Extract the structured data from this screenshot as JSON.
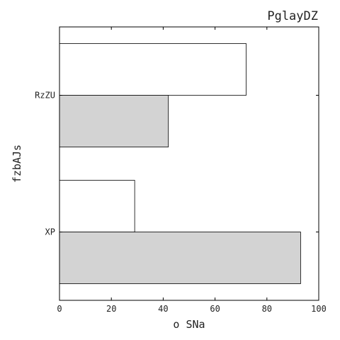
{
  "chart_data": {
    "type": "bar",
    "orientation": "horizontal",
    "title": "PglayDZ",
    "xlabel": "o SNa",
    "ylabel": "fzbAJs",
    "categories": [
      "XP",
      "RzZU"
    ],
    "series": [
      {
        "values": [
          93,
          42
        ],
        "color": "#d3d3d3"
      },
      {
        "values": [
          29,
          72
        ],
        "color": "#ffffff"
      }
    ],
    "xlim": [
      0,
      100
    ],
    "xticks": [
      0,
      20,
      40,
      60,
      80,
      100
    ],
    "grid": false,
    "legend": "none"
  }
}
